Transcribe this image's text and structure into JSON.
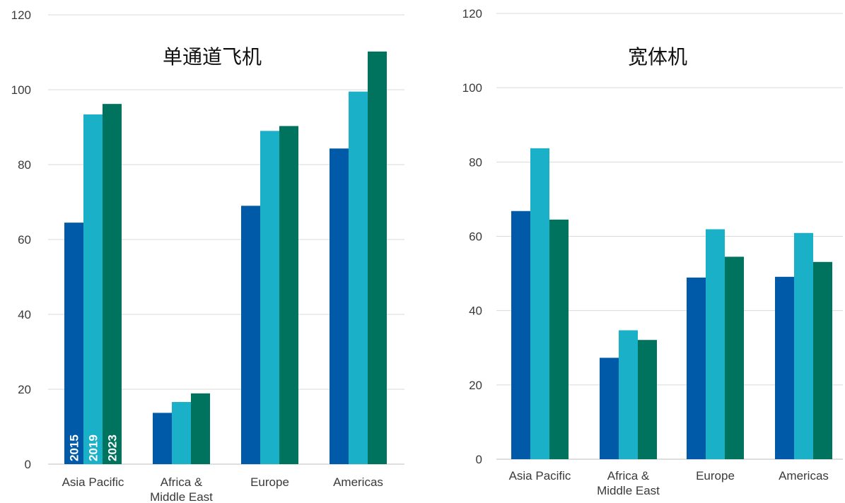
{
  "chart_data": [
    {
      "type": "bar",
      "title": "单通道飞机",
      "categories": [
        [
          "Asia Pacific"
        ],
        [
          "Africa &",
          "Middle East"
        ],
        [
          "Europe"
        ],
        [
          "Americas"
        ]
      ],
      "series": [
        {
          "name": "2015",
          "color": "#005aa8",
          "values": [
            64.5,
            13.7,
            69.0,
            84.3
          ]
        },
        {
          "name": "2019",
          "color": "#1ab0c8",
          "values": [
            93.4,
            16.6,
            89.0,
            99.5
          ]
        },
        {
          "name": "2023",
          "color": "#00735f",
          "values": [
            96.2,
            18.9,
            90.3,
            110.2
          ]
        }
      ],
      "show_series_labels_in_first_group": true,
      "ylim": [
        0,
        120
      ],
      "yticks": [
        0,
        20,
        40,
        60,
        80,
        100,
        120
      ],
      "grid": true
    },
    {
      "type": "bar",
      "title": "宽体机",
      "categories": [
        [
          "Asia Pacific"
        ],
        [
          "Africa &",
          "Middle East"
        ],
        [
          "Europe"
        ],
        [
          "Americas"
        ]
      ],
      "series": [
        {
          "name": "2015",
          "color": "#005aa8",
          "values": [
            66.8,
            27.3,
            48.9,
            49.1
          ]
        },
        {
          "name": "2019",
          "color": "#1ab0c8",
          "values": [
            83.7,
            34.7,
            61.9,
            60.9
          ]
        },
        {
          "name": "2023",
          "color": "#00735f",
          "values": [
            64.5,
            32.1,
            54.5,
            53.1
          ]
        }
      ],
      "show_series_labels_in_first_group": false,
      "ylim": [
        0,
        120
      ],
      "yticks": [
        0,
        20,
        40,
        60,
        80,
        100,
        120
      ],
      "grid": true
    }
  ]
}
